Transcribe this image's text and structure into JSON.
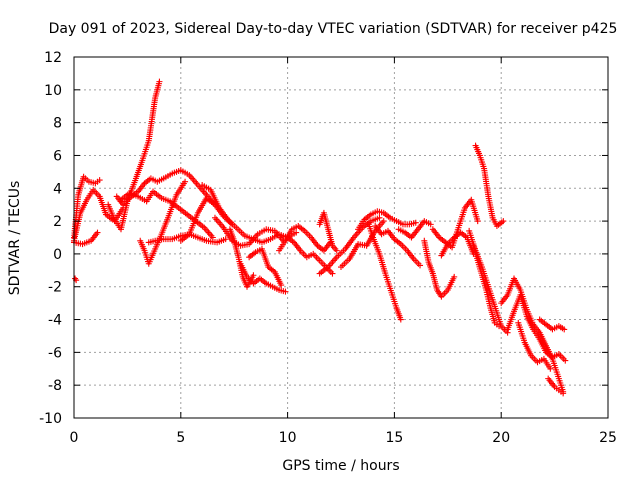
{
  "chart_data": {
    "type": "scatter",
    "title": "Day 091 of 2023, Sidereal Day-to-day VTEC variation (SDTVAR) for receiver p425",
    "xlabel": "GPS time / hours",
    "ylabel": "SDTVAR / TECUs",
    "xlim": [
      0,
      25
    ],
    "ylim": [
      -10,
      12
    ],
    "xticks": [
      0,
      5,
      10,
      15,
      20,
      25
    ],
    "yticks": [
      -10,
      -8,
      -6,
      -4,
      -2,
      0,
      2,
      4,
      6,
      8,
      10,
      12
    ],
    "grid": true,
    "marker": "plus",
    "color": "#ff0000",
    "series": [
      {
        "name": "s1",
        "x": [
          0.0,
          0.2,
          0.45,
          0.7,
          1.0,
          1.2
        ],
        "y": [
          1.0,
          3.6,
          4.7,
          4.4,
          4.3,
          4.5
        ]
      },
      {
        "name": "s2",
        "x": [
          0.0,
          0.3,
          0.6,
          0.9,
          1.2,
          1.5,
          1.9,
          2.3
        ],
        "y": [
          0.8,
          2.5,
          3.3,
          3.9,
          3.5,
          2.4,
          2.0,
          2.8
        ]
      },
      {
        "name": "s3",
        "x": [
          0.0,
          0.4,
          0.8,
          1.1
        ],
        "y": [
          0.7,
          0.6,
          0.8,
          1.3
        ]
      },
      {
        "name": "s4",
        "x": [
          1.6,
          1.9,
          2.2,
          2.5,
          2.9,
          3.2,
          3.5,
          3.8,
          4.0
        ],
        "y": [
          3.0,
          2.1,
          1.5,
          3.2,
          4.6,
          5.7,
          6.9,
          9.5,
          10.5
        ]
      },
      {
        "name": "s5",
        "x": [
          2.0,
          2.3,
          2.6,
          3.0,
          3.3,
          3.6,
          3.9,
          4.2,
          4.6,
          5.0,
          5.4,
          5.8,
          6.2,
          6.6
        ],
        "y": [
          3.5,
          3.0,
          3.4,
          3.8,
          4.3,
          4.6,
          4.4,
          4.6,
          4.9,
          5.1,
          4.8,
          4.2,
          3.6,
          3.0
        ]
      },
      {
        "name": "s6",
        "x": [
          2.2,
          2.6,
          3.0,
          3.4,
          3.7,
          4.1,
          4.5,
          4.9,
          5.3,
          5.7,
          6.1,
          6.5
        ],
        "y": [
          3.3,
          3.7,
          3.5,
          3.2,
          3.8,
          3.4,
          3.2,
          2.8,
          2.4,
          2.0,
          1.6,
          1.0
        ]
      },
      {
        "name": "s7",
        "x": [
          3.1,
          3.3,
          3.5,
          3.8,
          4.1,
          4.4,
          4.8,
          5.2
        ],
        "y": [
          0.8,
          0.2,
          -0.6,
          0.3,
          1.2,
          2.2,
          3.6,
          4.4
        ]
      },
      {
        "name": "s8",
        "x": [
          3.5,
          3.8,
          4.2,
          4.6,
          5.0,
          5.4,
          5.8,
          6.2,
          6.7,
          7.1
        ],
        "y": [
          0.7,
          0.8,
          0.9,
          0.9,
          1.1,
          1.2,
          1.0,
          0.8,
          0.7,
          0.9
        ]
      },
      {
        "name": "s9",
        "x": [
          5.0,
          5.4,
          5.8,
          6.2,
          6.6,
          7.0,
          7.4
        ],
        "y": [
          0.8,
          1.2,
          2.5,
          3.4,
          3.0,
          2.3,
          1.8
        ]
      },
      {
        "name": "s10",
        "x": [
          6.0,
          6.4,
          6.8,
          7.2,
          7.6,
          8.0,
          8.4,
          8.8,
          9.2,
          9.6,
          10.0,
          10.4
        ],
        "y": [
          4.2,
          3.9,
          2.8,
          2.1,
          1.6,
          1.1,
          0.9,
          0.7,
          0.9,
          1.2,
          1.0,
          1.3
        ]
      },
      {
        "name": "s11",
        "x": [
          6.6,
          7.0,
          7.4,
          7.8,
          8.2,
          8.6,
          9.0,
          9.4,
          9.8
        ],
        "y": [
          2.2,
          1.6,
          0.8,
          0.5,
          0.6,
          1.2,
          1.5,
          1.4,
          0.8
        ]
      },
      {
        "name": "s12",
        "x": [
          7.3,
          7.5,
          7.7,
          7.9,
          8.1,
          8.4
        ],
        "y": [
          1.5,
          0.8,
          -0.2,
          -1.4,
          -2.0,
          -1.3
        ]
      },
      {
        "name": "s13",
        "x": [
          7.8,
          8.1,
          8.4,
          8.7,
          9.0,
          9.3,
          9.6,
          9.9
        ],
        "y": [
          -0.6,
          -1.4,
          -1.8,
          -1.5,
          -1.8,
          -2.0,
          -2.2,
          -2.3
        ]
      },
      {
        "name": "s14",
        "x": [
          8.2,
          8.5,
          8.8,
          9.1,
          9.4,
          9.7
        ],
        "y": [
          -0.2,
          0.1,
          0.3,
          -0.8,
          -1.1,
          -1.9
        ]
      },
      {
        "name": "s15",
        "x": [
          9.6,
          9.9,
          10.2,
          10.5,
          10.8,
          11.1,
          11.4,
          11.7,
          12.0
        ],
        "y": [
          0.2,
          0.8,
          1.5,
          1.7,
          1.4,
          1.0,
          0.5,
          0.2,
          0.7
        ]
      },
      {
        "name": "s16",
        "x": [
          10.0,
          10.3,
          10.6,
          10.9,
          11.2,
          11.5,
          11.8,
          12.1
        ],
        "y": [
          1.0,
          0.7,
          0.2,
          -0.2,
          0.0,
          -0.4,
          -0.8,
          -1.2
        ]
      },
      {
        "name": "s17",
        "x": [
          11.5,
          11.7,
          11.9,
          12.1,
          12.3
        ],
        "y": [
          1.8,
          2.5,
          1.5,
          0.5,
          0.2
        ]
      },
      {
        "name": "s18",
        "x": [
          11.5,
          11.9,
          12.3,
          12.7,
          13.1,
          13.5,
          13.9,
          14.3
        ],
        "y": [
          -1.2,
          -0.8,
          -0.2,
          0.3,
          1.0,
          1.6,
          2.0,
          2.2
        ]
      },
      {
        "name": "s19",
        "x": [
          12.5,
          12.9,
          13.3,
          13.7,
          14.1,
          14.5
        ],
        "y": [
          -0.8,
          -0.3,
          0.6,
          0.5,
          1.4,
          2.0
        ]
      },
      {
        "name": "s20",
        "x": [
          13.3,
          13.6,
          13.9,
          14.2,
          14.5,
          14.8,
          15.1,
          15.4,
          15.7,
          16.0
        ],
        "y": [
          1.5,
          2.1,
          2.4,
          2.6,
          2.5,
          2.2,
          2.0,
          1.8,
          1.8,
          1.9
        ]
      },
      {
        "name": "s21",
        "x": [
          13.8,
          14.0,
          14.3,
          14.6,
          14.9,
          15.1,
          15.3
        ],
        "y": [
          1.8,
          1.0,
          0.0,
          -1.3,
          -2.5,
          -3.3,
          -4.0
        ]
      },
      {
        "name": "s22",
        "x": [
          14.1,
          14.4,
          14.7,
          15.0,
          15.3,
          15.6,
          15.9,
          16.2
        ],
        "y": [
          1.7,
          1.2,
          1.4,
          0.9,
          0.6,
          0.2,
          -0.3,
          -0.7
        ]
      },
      {
        "name": "s23",
        "x": [
          15.2,
          15.5,
          15.8,
          16.1,
          16.4,
          16.7
        ],
        "y": [
          1.5,
          1.3,
          1.0,
          1.5,
          2.0,
          1.8
        ]
      },
      {
        "name": "s24",
        "x": [
          16.4,
          16.6,
          16.8,
          17.0,
          17.2,
          17.5,
          17.8
        ],
        "y": [
          0.8,
          -0.5,
          -1.2,
          -2.2,
          -2.6,
          -2.2,
          -1.4
        ]
      },
      {
        "name": "s25",
        "x": [
          16.8,
          17.1,
          17.4,
          17.7,
          18.0,
          18.3,
          18.6,
          18.9
        ],
        "y": [
          1.5,
          1.0,
          0.7,
          0.4,
          1.6,
          2.8,
          3.3,
          2.0
        ]
      },
      {
        "name": "s26",
        "x": [
          17.2,
          17.5,
          17.8,
          18.1,
          18.4,
          18.7
        ],
        "y": [
          -0.1,
          0.6,
          1.0,
          1.3,
          1.0,
          0.0
        ]
      },
      {
        "name": "s27",
        "x": [
          18.8,
          19.0,
          19.2,
          19.4,
          19.6,
          19.8,
          20.1
        ],
        "y": [
          6.6,
          6.0,
          5.2,
          3.5,
          2.2,
          1.7,
          2.0
        ]
      },
      {
        "name": "s28",
        "x": [
          18.5,
          18.8,
          19.1,
          19.4,
          19.7,
          20.0,
          20.3
        ],
        "y": [
          1.4,
          0.2,
          -0.8,
          -2.0,
          -3.2,
          -4.4,
          -4.8
        ]
      },
      {
        "name": "s29",
        "x": [
          18.7,
          18.9,
          19.1,
          19.3,
          19.5,
          19.7,
          19.9
        ],
        "y": [
          0.5,
          -0.4,
          -1.3,
          -2.2,
          -3.3,
          -4.2,
          -4.4
        ]
      },
      {
        "name": "s30",
        "x": [
          20.0,
          20.3,
          20.6,
          20.9,
          21.2,
          21.5,
          21.8,
          22.1,
          22.4,
          22.7,
          22.9
        ],
        "y": [
          -3.0,
          -2.5,
          -1.5,
          -2.2,
          -3.4,
          -4.3,
          -4.8,
          -5.6,
          -6.4,
          -7.6,
          -8.4
        ]
      },
      {
        "name": "s31",
        "x": [
          20.3,
          20.6,
          20.9,
          21.2,
          21.5,
          21.8,
          22.1,
          22.4,
          22.7,
          23.0
        ],
        "y": [
          -4.6,
          -3.5,
          -2.5,
          -3.8,
          -4.6,
          -5.2,
          -6.0,
          -6.3,
          -6.1,
          -6.5
        ]
      },
      {
        "name": "s32",
        "x": [
          20.8,
          21.1,
          21.4,
          21.7,
          22.0,
          22.3
        ],
        "y": [
          -4.2,
          -5.4,
          -6.2,
          -6.6,
          -6.4,
          -7.0
        ]
      },
      {
        "name": "s33",
        "x": [
          21.8,
          22.1,
          22.4,
          22.7,
          22.95
        ],
        "y": [
          -4.0,
          -4.3,
          -4.6,
          -4.4,
          -4.6
        ]
      },
      {
        "name": "s34",
        "x": [
          22.2,
          22.5,
          22.7,
          22.9
        ],
        "y": [
          -7.6,
          -8.1,
          -8.3,
          -8.5
        ]
      },
      {
        "name": "s35",
        "x": [
          0.05,
          0.1
        ],
        "y": [
          -1.5,
          -1.6
        ]
      }
    ]
  }
}
